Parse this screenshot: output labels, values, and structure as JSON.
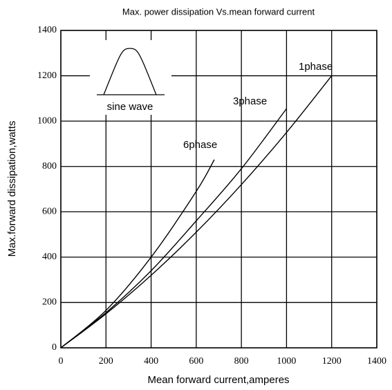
{
  "chart_data": {
    "type": "line",
    "title": "Max. power dissipation  Vs.mean forward current",
    "x_label": "Mean forward  current,amperes",
    "y_label": "Max.forward dissipation,watts",
    "annotation": "sine wave",
    "xlim": [
      0,
      1400
    ],
    "xticks": [
      0,
      200,
      400,
      600,
      800,
      1000,
      1200,
      1400
    ],
    "ylim": [
      0,
      1400
    ],
    "yticks": [
      0,
      200,
      400,
      600,
      800,
      1000,
      1200,
      1400
    ],
    "grid": true,
    "series": [
      {
        "name": "1phase",
        "color": "#000000",
        "x": [
          0,
          200,
          400,
          600,
          800,
          1000,
          1200
        ],
        "values": [
          0,
          150,
          320,
          510,
          720,
          950,
          1200
        ]
      },
      {
        "name": "3phase",
        "color": "#000000",
        "x": [
          0,
          200,
          400,
          600,
          800,
          1000
        ],
        "values": [
          0,
          155,
          340,
          560,
          790,
          1055
        ]
      },
      {
        "name": "6phase",
        "color": "#000000",
        "x": [
          0,
          200,
          400,
          600,
          680
        ],
        "values": [
          0,
          165,
          400,
          690,
          830
        ]
      }
    ]
  }
}
